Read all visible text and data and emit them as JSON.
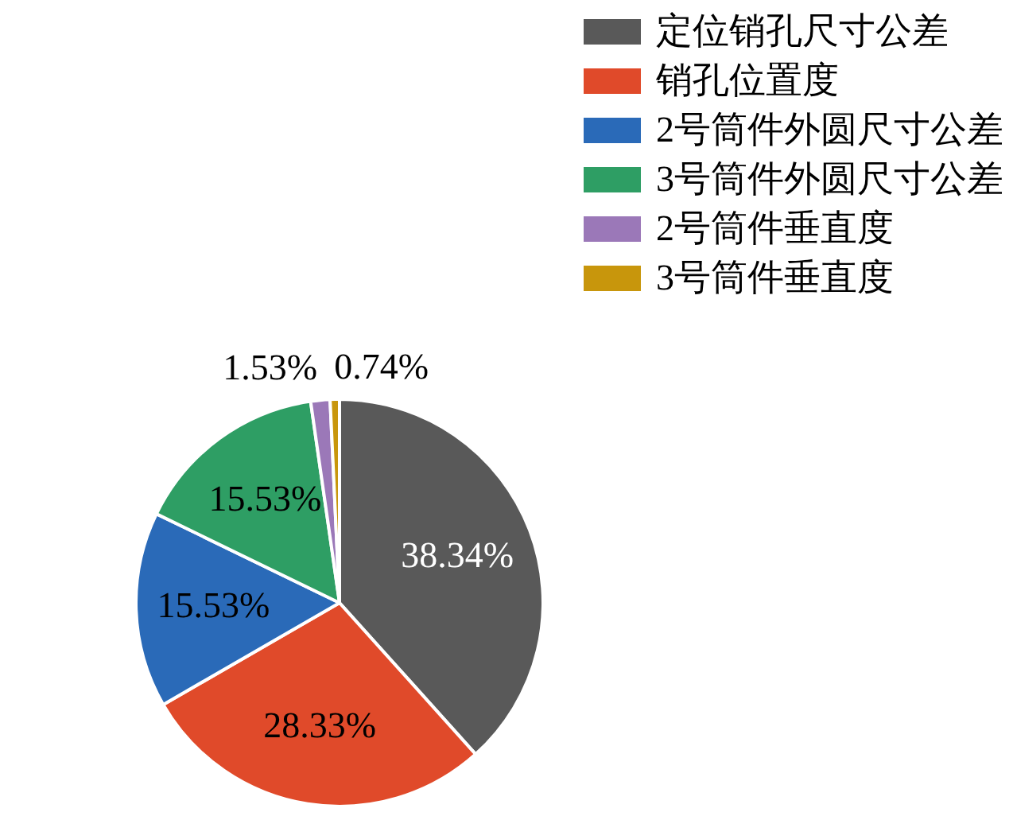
{
  "chart_data": {
    "type": "pie",
    "categories": [
      "定位销孔尺寸公差",
      "销孔位置度",
      "2号筒件外圆尺寸公差",
      "3号筒件外圆尺寸公差",
      "2号筒件垂直度",
      "3号筒件垂直度"
    ],
    "values": [
      38.34,
      28.33,
      15.53,
      15.53,
      1.53,
      0.74
    ],
    "value_labels": [
      "38.34%",
      "28.33%",
      "15.53%",
      "15.53%",
      "1.53%",
      "0.74%"
    ],
    "colors": [
      "#595959",
      "#e04a2a",
      "#2a6ab8",
      "#2e9e64",
      "#9b78b8",
      "#c8960c"
    ],
    "legend": "top right"
  }
}
